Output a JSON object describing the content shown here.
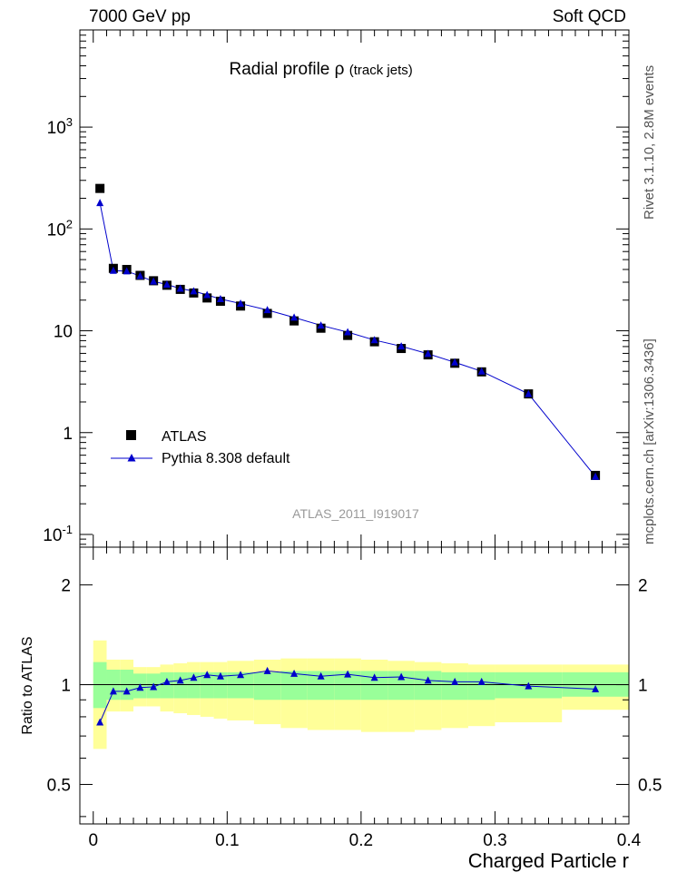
{
  "header": {
    "left": "7000 GeV pp",
    "right": "Soft QCD"
  },
  "side_labels": {
    "rivet": "Rivet 3.1.10, 2.8M events",
    "mcplots": "mcplots.cern.ch [arXiv:1306.3436]"
  },
  "chart_data": [
    {
      "type": "scatter",
      "panel": "main",
      "title": "Radial profile",
      "title_symbol": "ρ",
      "title_suffix": "(track jets)",
      "analysis_label": "ATLAS_2011_I919017",
      "yscale": "log",
      "ylim": [
        0.075,
        9000
      ],
      "xlim": [
        -0.01,
        0.4
      ],
      "y_tick_labels": [
        "10^-1",
        "1",
        "10",
        "10^2",
        "10^3"
      ],
      "legend_position": "lower-left",
      "x": [
        0.005,
        0.015,
        0.025,
        0.035,
        0.045,
        0.055,
        0.065,
        0.075,
        0.085,
        0.095,
        0.11,
        0.13,
        0.15,
        0.17,
        0.19,
        0.21,
        0.23,
        0.25,
        0.27,
        0.29,
        0.325,
        0.375
      ],
      "x_edges": [
        0,
        0.01,
        0.02,
        0.03,
        0.04,
        0.05,
        0.06,
        0.07,
        0.08,
        0.09,
        0.1,
        0.12,
        0.14,
        0.16,
        0.18,
        0.2,
        0.22,
        0.24,
        0.26,
        0.28,
        0.3,
        0.35,
        0.4
      ],
      "series": [
        {
          "name": "ATLAS",
          "marker": "square",
          "color": "#000000",
          "values": [
            250,
            41,
            40,
            35,
            31,
            28,
            25.5,
            23.5,
            21,
            19.5,
            17.5,
            14.8,
            12.5,
            10.6,
            9,
            7.8,
            6.7,
            5.8,
            4.8,
            3.95,
            2.4,
            0.38
          ]
        },
        {
          "name": "Pythia 8.308 default",
          "marker": "triangle",
          "color": "#0000cc",
          "values": [
            180,
            39,
            38.5,
            34.5,
            30.5,
            28.5,
            26,
            24.5,
            22.5,
            20.5,
            18.5,
            16,
            13.5,
            11.3,
            9.7,
            8.1,
            7.05,
            5.95,
            4.9,
            4,
            2.4,
            0.37
          ]
        }
      ]
    },
    {
      "type": "line",
      "panel": "ratio",
      "ylabel": "Ratio to ATLAS",
      "xlabel": "Charged Particle r",
      "yscale": "log",
      "ylim": [
        0.38,
        2.6
      ],
      "xlim": [
        -0.01,
        0.4
      ],
      "y_tick_labels": [
        "0.5",
        "1",
        "2"
      ],
      "x_tick_labels": [
        "0",
        "0.1",
        "0.2",
        "0.3",
        "0.4"
      ],
      "x": [
        0.005,
        0.015,
        0.025,
        0.035,
        0.045,
        0.055,
        0.065,
        0.075,
        0.085,
        0.095,
        0.11,
        0.13,
        0.15,
        0.17,
        0.19,
        0.21,
        0.23,
        0.25,
        0.27,
        0.29,
        0.325,
        0.375
      ],
      "series": [
        {
          "name": "Pythia 8.308 default",
          "values": [
            0.77,
            0.955,
            0.955,
            0.98,
            0.985,
            1.02,
            1.03,
            1.05,
            1.07,
            1.06,
            1.07,
            1.1,
            1.08,
            1.06,
            1.075,
            1.05,
            1.055,
            1.03,
            1.02,
            1.02,
            0.99,
            0.97
          ]
        }
      ],
      "bands": {
        "green_color": "#99ff99",
        "yellow_color": "#ffff99",
        "green_lo": [
          0.85,
          0.9,
          0.9,
          0.91,
          0.91,
          0.91,
          0.91,
          0.91,
          0.91,
          0.91,
          0.91,
          0.9,
          0.9,
          0.9,
          0.9,
          0.9,
          0.9,
          0.9,
          0.9,
          0.9,
          0.91,
          0.92
        ],
        "green_hi": [
          1.17,
          1.11,
          1.11,
          1.08,
          1.08,
          1.09,
          1.09,
          1.09,
          1.09,
          1.09,
          1.09,
          1.09,
          1.1,
          1.1,
          1.1,
          1.1,
          1.1,
          1.1,
          1.09,
          1.09,
          1.09,
          1.09
        ],
        "yellow_lo": [
          0.64,
          0.83,
          0.83,
          0.86,
          0.86,
          0.83,
          0.82,
          0.81,
          0.8,
          0.79,
          0.78,
          0.76,
          0.74,
          0.73,
          0.73,
          0.72,
          0.72,
          0.73,
          0.74,
          0.75,
          0.77,
          0.84
        ],
        "yellow_hi": [
          1.36,
          1.19,
          1.19,
          1.13,
          1.13,
          1.15,
          1.16,
          1.17,
          1.17,
          1.17,
          1.18,
          1.19,
          1.2,
          1.2,
          1.2,
          1.19,
          1.18,
          1.17,
          1.16,
          1.15,
          1.15,
          1.15
        ]
      }
    }
  ]
}
